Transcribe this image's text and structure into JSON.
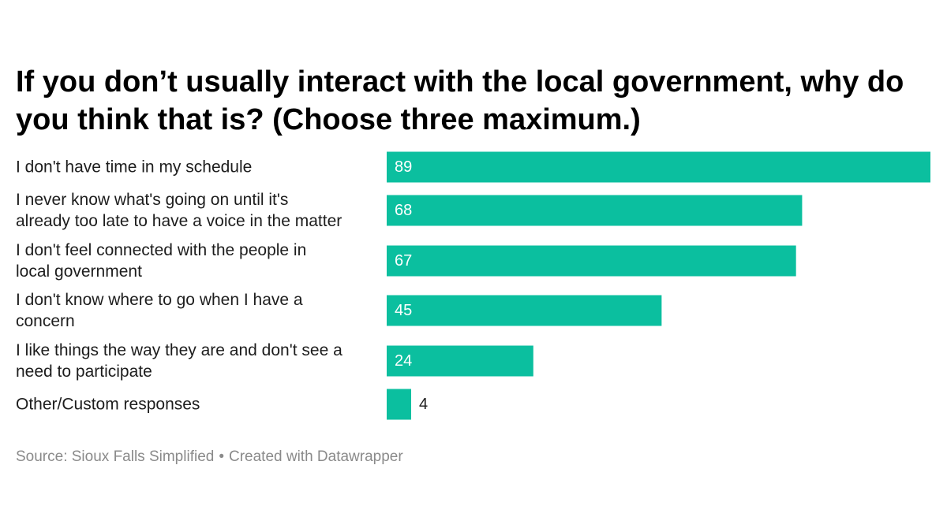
{
  "title": "If you don’t usually interact with the local government, why do you think that is? (Choose three maximum.)",
  "footer": {
    "source": "Source: Sioux Falls Simplified",
    "separator": "•",
    "credit": "Created with Datawrapper"
  },
  "colors": {
    "bar": "#0bbf9f",
    "label_inside": "#ffffff",
    "label_outside": "#1d1d1d"
  },
  "chart_data": {
    "type": "bar",
    "orientation": "horizontal",
    "categories": [
      [
        "I don't have time in my schedule"
      ],
      [
        "I never know what's going on until it's",
        "already too late to have a voice in the matter"
      ],
      [
        "I don't feel connected with the people in",
        "local government"
      ],
      [
        "I don't know where to go when I have a",
        "concern"
      ],
      [
        "I like things the way they are and don't see a",
        "need to participate"
      ],
      [
        "Other/Custom responses"
      ]
    ],
    "values": [
      89,
      68,
      67,
      45,
      24,
      4
    ],
    "xlim": [
      0,
      89
    ],
    "grid": false,
    "legend": "none"
  }
}
